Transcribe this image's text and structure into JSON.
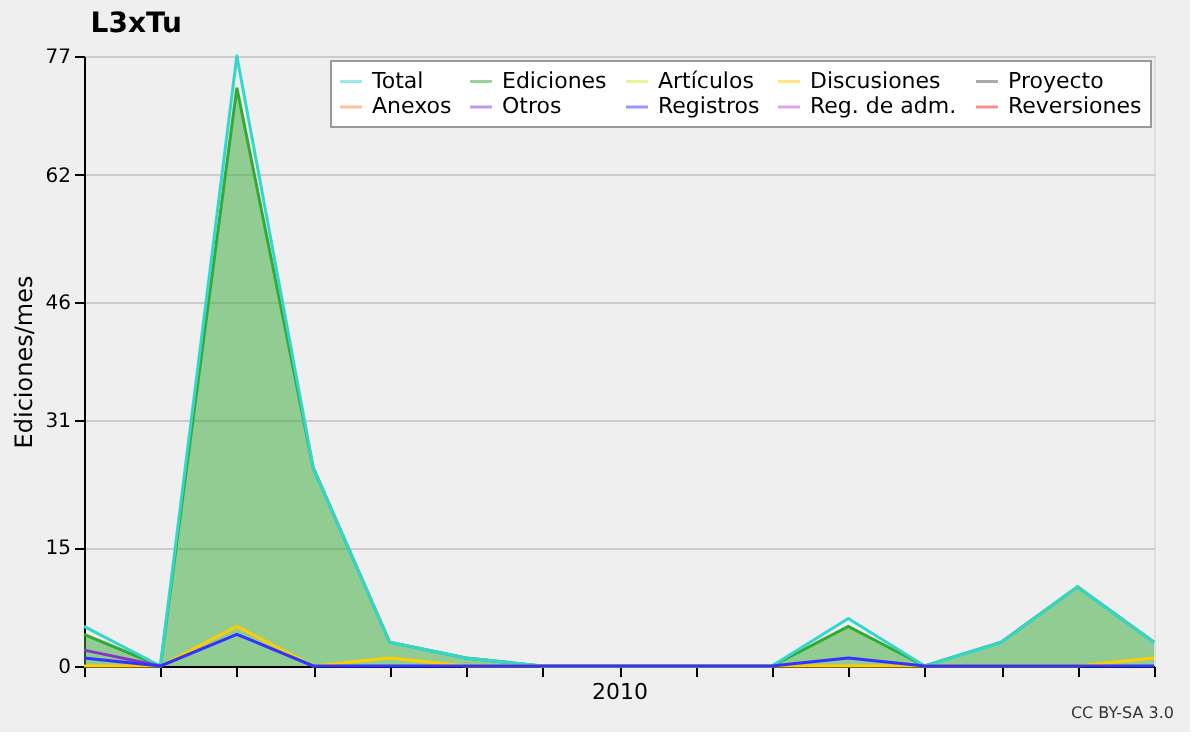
{
  "chart_data": {
    "type": "line",
    "title": "L3xTu",
    "ylabel": "Ediciones/mes",
    "categories": [
      null,
      null,
      null,
      null,
      null,
      null,
      null,
      "2010",
      null,
      null,
      null,
      null,
      null,
      null,
      null
    ],
    "ylim": [
      0,
      77
    ],
    "yticks": [
      0,
      15,
      31,
      46,
      62,
      77
    ],
    "grid": "y",
    "legend": "top right",
    "annotations": [
      "CC BY-SA 3.0"
    ],
    "series": [
      {
        "name": "Total",
        "color": "#33d6cc",
        "values": [
          5,
          0,
          77,
          25,
          3,
          1,
          0,
          0,
          0,
          0,
          6,
          0,
          3,
          10,
          3
        ]
      },
      {
        "name": "Ediciones",
        "color": "#33aa33",
        "type": "area",
        "values": [
          4,
          0,
          73,
          25,
          3,
          1,
          0,
          0,
          0,
          0,
          5,
          0,
          3,
          10,
          3
        ]
      },
      {
        "name": "Artículos",
        "color": "#ccee44",
        "values": [
          null,
          null,
          null,
          null,
          null,
          null,
          null,
          null,
          null,
          null,
          null,
          null,
          null,
          null,
          null
        ]
      },
      {
        "name": "Discusiones",
        "color": "#ffcc00",
        "values": [
          0,
          0,
          5,
          0,
          1,
          0,
          0,
          0,
          0,
          0,
          0,
          0,
          0,
          0,
          1
        ]
      },
      {
        "name": "Proyecto",
        "color": "#555555",
        "values": [
          null,
          null,
          null,
          null,
          null,
          null,
          null,
          null,
          null,
          null,
          null,
          null,
          null,
          null,
          null
        ]
      },
      {
        "name": "Anexos",
        "color": "#ff7f3f",
        "values": [
          null,
          null,
          null,
          null,
          null,
          null,
          null,
          null,
          null,
          null,
          null,
          null,
          null,
          null,
          null
        ]
      },
      {
        "name": "Otros",
        "color": "#8833cc",
        "values": [
          2,
          0,
          null,
          null,
          null,
          null,
          null,
          null,
          null,
          null,
          null,
          null,
          null,
          null,
          null
        ]
      },
      {
        "name": "Registros",
        "color": "#3333ff",
        "values": [
          1,
          0,
          4,
          0,
          0,
          0,
          0,
          0,
          0,
          0,
          1,
          0,
          0,
          0,
          0
        ]
      },
      {
        "name": "Reg. de adm.",
        "color": "#cc44dd",
        "values": [
          null,
          null,
          null,
          null,
          null,
          null,
          null,
          null,
          null,
          null,
          null,
          null,
          null,
          null,
          null
        ]
      },
      {
        "name": "Reversiones",
        "color": "#ee2222",
        "values": [
          null,
          null,
          null,
          null,
          null,
          null,
          null,
          null,
          null,
          null,
          null,
          null,
          null,
          null,
          null
        ]
      }
    ]
  }
}
